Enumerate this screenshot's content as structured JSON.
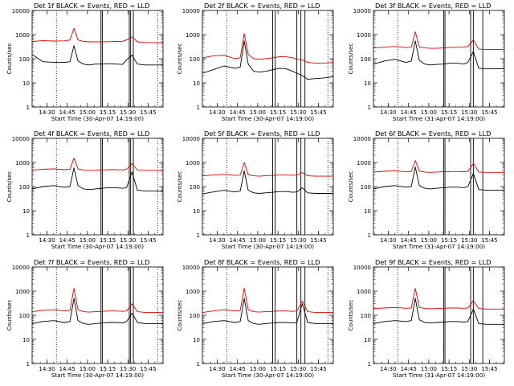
{
  "figure": {
    "ylabel": "Counts/sec",
    "x_ticks": [
      "14:30",
      "14:45",
      "15:00",
      "15:15",
      "15:30",
      "15:45"
    ],
    "y_ticks": [
      "1",
      "10",
      "100",
      "1000",
      "10000"
    ],
    "colors": {
      "events": "#000000",
      "lld": "#dd0000",
      "frame": "#000000"
    }
  },
  "chart_data": [
    {
      "type": "line",
      "title": "Det 1f BLACK = Events, RED = LLD",
      "xlabel": "Start Time (30-Apr-07 14:19:00)",
      "ylabel": "Counts/sec",
      "xlim": [
        "14:19",
        "15:56"
      ],
      "ylim": [
        1,
        10000
      ],
      "yscale": "log",
      "dotted_vlines": [
        "14:37",
        "15:11",
        "15:52"
      ],
      "solid_vlines": [
        "15:10",
        "15:11",
        "15:31",
        "15:32",
        "15:34"
      ],
      "x": [
        "14:19",
        "14:27",
        "14:35",
        "14:43",
        "14:47",
        "14:50",
        "14:53",
        "14:57",
        "15:01",
        "15:06",
        "15:11",
        "15:16",
        "15:21",
        "15:26",
        "15:29",
        "15:33",
        "15:37",
        "15:43",
        "15:49",
        "15:56"
      ],
      "series": [
        {
          "name": "BLACK = Events",
          "values": [
            150,
            75,
            70,
            70,
            75,
            350,
            80,
            60,
            55,
            60,
            60,
            62,
            60,
            58,
            90,
            140,
            60,
            55,
            55,
            55
          ]
        },
        {
          "name": "RED = LLD",
          "values": [
            520,
            560,
            540,
            550,
            600,
            1800,
            600,
            520,
            500,
            500,
            500,
            510,
            520,
            530,
            600,
            800,
            500,
            470,
            460,
            460
          ]
        }
      ]
    },
    {
      "type": "line",
      "title": "Det 2f BLACK = Events, RED = LLD",
      "xlabel": "Start Time (30-Apr-07 14:19:00)",
      "ylabel": "Counts/sec",
      "xlim": [
        "14:19",
        "15:56"
      ],
      "ylim": [
        1,
        10000
      ],
      "yscale": "log",
      "dotted_vlines": [
        "14:37",
        "15:11",
        "15:52"
      ],
      "solid_vlines": [
        "15:11",
        "15:13",
        "15:29",
        "15:32",
        "15:35"
      ],
      "x": [
        "14:19",
        "14:27",
        "14:35",
        "14:43",
        "14:47",
        "14:50",
        "14:53",
        "14:57",
        "15:01",
        "15:06",
        "15:11",
        "15:16",
        "15:21",
        "15:26",
        "15:29",
        "15:33",
        "15:37",
        "15:43",
        "15:49",
        "15:56"
      ],
      "series": [
        {
          "name": "BLACK = Events",
          "values": [
            25,
            35,
            50,
            40,
            45,
            550,
            60,
            30,
            28,
            30,
            35,
            40,
            38,
            30,
            25,
            20,
            14,
            15,
            16,
            18
          ]
        },
        {
          "name": "RED = LLD",
          "values": [
            110,
            130,
            140,
            100,
            110,
            1100,
            150,
            100,
            95,
            100,
            110,
            120,
            120,
            110,
            95,
            90,
            70,
            65,
            65,
            70
          ]
        }
      ]
    },
    {
      "type": "line",
      "title": "Det 3f BLACK = Events, RED = LLD",
      "xlabel": "Start Time (31-Apr-07 14:19:00)",
      "ylabel": "Counts/sec",
      "xlim": [
        "14:19",
        "15:56"
      ],
      "ylim": [
        1,
        10000
      ],
      "yscale": "log",
      "dotted_vlines": [
        "14:37",
        "15:11"
      ],
      "solid_vlines": [
        "15:11",
        "15:12",
        "15:31",
        "15:33",
        "15:40"
      ],
      "x": [
        "14:19",
        "14:27",
        "14:35",
        "14:43",
        "14:47",
        "14:50",
        "14:53",
        "14:57",
        "15:01",
        "15:06",
        "15:11",
        "15:16",
        "15:21",
        "15:26",
        "15:29",
        "15:33",
        "15:37",
        "15:43",
        "15:49",
        "15:56"
      ],
      "series": [
        {
          "name": "BLACK = Events",
          "values": [
            60,
            80,
            95,
            70,
            80,
            550,
            85,
            60,
            55,
            58,
            60,
            65,
            65,
            60,
            70,
            200,
            40,
            38,
            38,
            38
          ]
        },
        {
          "name": "RED = LLD",
          "values": [
            280,
            300,
            320,
            290,
            300,
            1300,
            310,
            280,
            270,
            270,
            280,
            290,
            300,
            300,
            320,
            600,
            250,
            240,
            240,
            240
          ]
        }
      ]
    },
    {
      "type": "line",
      "title": "Det 4f BLACK = Events, RED = LLD",
      "xlabel": "Start Time (30-Apr-07 14:19:00)",
      "ylabel": "Counts/sec",
      "xlim": [
        "14:19",
        "15:56"
      ],
      "ylim": [
        1,
        10000
      ],
      "yscale": "log",
      "dotted_vlines": [
        "14:37",
        "15:11",
        "15:52"
      ],
      "solid_vlines": [
        "15:10",
        "15:11",
        "15:31",
        "15:32",
        "15:34"
      ],
      "x": [
        "14:19",
        "14:27",
        "14:35",
        "14:43",
        "14:47",
        "14:50",
        "14:53",
        "14:57",
        "15:01",
        "15:06",
        "15:11",
        "15:16",
        "15:21",
        "15:26",
        "15:29",
        "15:33",
        "15:37",
        "15:43",
        "15:49",
        "15:56"
      ],
      "series": [
        {
          "name": "BLACK = Events",
          "values": [
            80,
            100,
            110,
            95,
            100,
            600,
            110,
            80,
            75,
            80,
            85,
            90,
            90,
            85,
            90,
            400,
            70,
            65,
            65,
            65
          ]
        },
        {
          "name": "RED = LLD",
          "values": [
            480,
            520,
            540,
            500,
            520,
            1500,
            540,
            480,
            470,
            480,
            490,
            500,
            500,
            490,
            520,
            900,
            480,
            470,
            470,
            470
          ]
        }
      ]
    },
    {
      "type": "line",
      "title": "Det 5f BLACK = Events, RED = LLD",
      "xlabel": "Start Time (30-Apr-07 14:19:00)",
      "ylabel": "Counts/sec",
      "xlim": [
        "14:19",
        "15:56"
      ],
      "ylim": [
        1,
        10000
      ],
      "yscale": "log",
      "dotted_vlines": [
        "14:37",
        "15:11",
        "15:52"
      ],
      "solid_vlines": [
        "15:11",
        "15:13",
        "15:29",
        "15:32",
        "15:35"
      ],
      "x": [
        "14:19",
        "14:27",
        "14:35",
        "14:43",
        "14:47",
        "14:50",
        "14:53",
        "14:57",
        "15:01",
        "15:06",
        "15:11",
        "15:16",
        "15:21",
        "15:26",
        "15:29",
        "15:33",
        "15:37",
        "15:43",
        "15:49",
        "15:56"
      ],
      "series": [
        {
          "name": "BLACK = Events",
          "values": [
            50,
            60,
            70,
            60,
            65,
            450,
            70,
            55,
            52,
            55,
            58,
            62,
            62,
            58,
            60,
            90,
            55,
            52,
            52,
            52
          ]
        },
        {
          "name": "RED = LLD",
          "values": [
            280,
            300,
            320,
            290,
            300,
            1000,
            310,
            280,
            270,
            280,
            290,
            300,
            300,
            295,
            300,
            380,
            280,
            270,
            270,
            270
          ]
        }
      ]
    },
    {
      "type": "line",
      "title": "Det 6f BLACK = Events, RED = LLD",
      "xlabel": "Start Time (31-Apr-07 14:19:00)",
      "ylabel": "Counts/sec",
      "xlim": [
        "14:19",
        "15:56"
      ],
      "ylim": [
        1,
        10000
      ],
      "yscale": "log",
      "dotted_vlines": [
        "14:37",
        "15:11"
      ],
      "solid_vlines": [
        "15:11",
        "15:12",
        "15:31",
        "15:33",
        "15:40"
      ],
      "x": [
        "14:19",
        "14:27",
        "14:35",
        "14:43",
        "14:47",
        "14:50",
        "14:53",
        "14:57",
        "15:01",
        "15:06",
        "15:11",
        "15:16",
        "15:21",
        "15:26",
        "15:29",
        "15:33",
        "15:37",
        "15:43",
        "15:49",
        "15:56"
      ],
      "series": [
        {
          "name": "BLACK = Events",
          "values": [
            80,
            100,
            110,
            95,
            100,
            650,
            110,
            85,
            80,
            85,
            90,
            95,
            95,
            90,
            100,
            350,
            75,
            70,
            70,
            70
          ]
        },
        {
          "name": "RED = LLD",
          "values": [
            400,
            430,
            450,
            410,
            430,
            1200,
            440,
            400,
            390,
            400,
            410,
            420,
            420,
            410,
            430,
            900,
            400,
            390,
            390,
            390
          ]
        }
      ]
    },
    {
      "type": "line",
      "title": "Det 7f BLACK = Events, RED = LLD",
      "xlabel": "Start Time (30-Apr-07 14:19:00)",
      "ylabel": "Counts/sec",
      "xlim": [
        "14:19",
        "15:56"
      ],
      "ylim": [
        1,
        10000
      ],
      "yscale": "log",
      "dotted_vlines": [
        "14:37",
        "15:11",
        "15:52"
      ],
      "solid_vlines": [
        "15:10",
        "15:11",
        "15:31",
        "15:32",
        "15:34"
      ],
      "x": [
        "14:19",
        "14:27",
        "14:35",
        "14:43",
        "14:47",
        "14:50",
        "14:53",
        "14:57",
        "15:01",
        "15:06",
        "15:11",
        "15:16",
        "15:21",
        "15:26",
        "15:29",
        "15:33",
        "15:37",
        "15:43",
        "15:49",
        "15:56"
      ],
      "series": [
        {
          "name": "BLACK = Events",
          "values": [
            45,
            55,
            60,
            50,
            55,
            500,
            60,
            45,
            42,
            45,
            48,
            50,
            50,
            48,
            55,
            120,
            50,
            45,
            45,
            45
          ]
        },
        {
          "name": "RED = LLD",
          "values": [
            140,
            160,
            170,
            150,
            160,
            1300,
            170,
            140,
            135,
            140,
            145,
            150,
            150,
            145,
            150,
            300,
            140,
            130,
            130,
            130
          ]
        }
      ]
    },
    {
      "type": "line",
      "title": "Det 8f BLACK = Events, RED = LLD",
      "xlabel": "Start Time (30-Apr-07 14:19:00)",
      "ylabel": "Counts/sec",
      "xlim": [
        "14:19",
        "15:56"
      ],
      "ylim": [
        1,
        10000
      ],
      "yscale": "log",
      "dotted_vlines": [
        "14:37",
        "15:11",
        "15:52"
      ],
      "solid_vlines": [
        "15:11",
        "15:13",
        "15:29",
        "15:32",
        "15:35"
      ],
      "x": [
        "14:19",
        "14:27",
        "14:35",
        "14:43",
        "14:47",
        "14:50",
        "14:53",
        "14:57",
        "15:01",
        "15:06",
        "15:11",
        "15:16",
        "15:21",
        "15:26",
        "15:29",
        "15:33",
        "15:37",
        "15:43",
        "15:49",
        "15:56"
      ],
      "series": [
        {
          "name": "BLACK = Events",
          "values": [
            45,
            55,
            60,
            50,
            55,
            500,
            60,
            45,
            42,
            45,
            48,
            50,
            50,
            48,
            50,
            300,
            50,
            45,
            45,
            45
          ]
        },
        {
          "name": "RED = LLD",
          "values": [
            130,
            150,
            170,
            150,
            160,
            1300,
            170,
            140,
            135,
            140,
            145,
            150,
            150,
            145,
            150,
            380,
            140,
            130,
            130,
            130
          ]
        }
      ]
    },
    {
      "type": "line",
      "title": "Det 9f BLACK = Events, RED = LLD",
      "xlabel": "Start Time (31-Apr-07 14:19:00)",
      "ylabel": "Counts/sec",
      "xlim": [
        "14:19",
        "15:56"
      ],
      "ylim": [
        1,
        10000
      ],
      "yscale": "log",
      "dotted_vlines": [
        "14:37",
        "15:11"
      ],
      "solid_vlines": [
        "15:11",
        "15:12",
        "15:31",
        "15:33",
        "15:40"
      ],
      "x": [
        "14:19",
        "14:27",
        "14:35",
        "14:43",
        "14:47",
        "14:50",
        "14:53",
        "14:57",
        "15:01",
        "15:06",
        "15:11",
        "15:16",
        "15:21",
        "15:26",
        "15:29",
        "15:33",
        "15:37",
        "15:43",
        "15:49",
        "15:56"
      ],
      "series": [
        {
          "name": "BLACK = Events",
          "values": [
            45,
            55,
            60,
            55,
            60,
            500,
            65,
            50,
            48,
            50,
            52,
            55,
            55,
            52,
            55,
            180,
            45,
            42,
            42,
            42
          ]
        },
        {
          "name": "RED = LLD",
          "values": [
            190,
            200,
            210,
            195,
            200,
            1300,
            210,
            190,
            185,
            190,
            195,
            200,
            200,
            195,
            200,
            400,
            190,
            180,
            180,
            180
          ]
        }
      ]
    }
  ]
}
